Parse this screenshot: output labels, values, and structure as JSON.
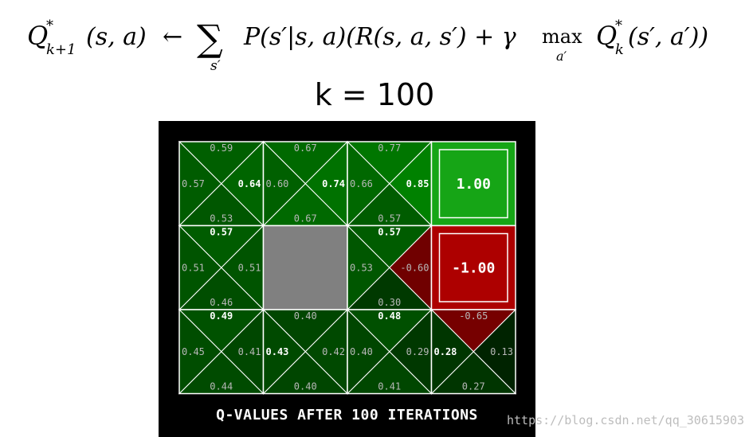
{
  "header": {
    "iteration_label": "k = 100"
  },
  "formula": {
    "lhs_q": "Q",
    "lhs_star": "*",
    "lhs_sub": "k+1",
    "lhs_args": "(s, a)",
    "arrow": "←",
    "sum": "∑",
    "sum_sub": "s′",
    "p_term": "P(s′|s, a)(R(s, a, s′) + γ",
    "max": "max",
    "max_sub": "a′",
    "rhs_q": "Q",
    "rhs_star": "*",
    "rhs_sub": "k",
    "rhs_args": "(s′, a′))"
  },
  "gridworld": {
    "rows": 3,
    "cols": 4,
    "cells": [
      {
        "row": 0,
        "col": 0,
        "type": "q",
        "north": "0.59",
        "west": "0.57",
        "east": "0.64",
        "south": "0.53",
        "best": "east"
      },
      {
        "row": 0,
        "col": 1,
        "type": "q",
        "north": "0.67",
        "west": "0.60",
        "east": "0.74",
        "south": "0.67",
        "best": "east"
      },
      {
        "row": 0,
        "col": 2,
        "type": "q",
        "north": "0.77",
        "west": "0.66",
        "east": "0.85",
        "south": "0.57",
        "best": "east"
      },
      {
        "row": 0,
        "col": 3,
        "type": "terminal",
        "value": "1.00",
        "color": "#16a516"
      },
      {
        "row": 1,
        "col": 0,
        "type": "q",
        "north": "0.57",
        "west": "0.51",
        "east": "0.51",
        "south": "0.46",
        "best": "north"
      },
      {
        "row": 1,
        "col": 1,
        "type": "wall",
        "color": "#808080"
      },
      {
        "row": 1,
        "col": 2,
        "type": "q",
        "north": "0.57",
        "west": "0.53",
        "east": "-0.60",
        "south": "0.30",
        "best": "north"
      },
      {
        "row": 1,
        "col": 3,
        "type": "terminal",
        "value": "-1.00",
        "color": "#ad0000"
      },
      {
        "row": 2,
        "col": 0,
        "type": "q",
        "north": "0.49",
        "west": "0.45",
        "east": "0.41",
        "south": "0.44",
        "best": "north"
      },
      {
        "row": 2,
        "col": 1,
        "type": "q",
        "north": "0.40",
        "west": "0.43",
        "east": "0.42",
        "south": "0.40",
        "best": "west"
      },
      {
        "row": 2,
        "col": 2,
        "type": "q",
        "north": "0.48",
        "west": "0.40",
        "east": "0.29",
        "south": "0.41",
        "best": "north"
      },
      {
        "row": 2,
        "col": 3,
        "type": "q",
        "north": "-0.65",
        "west": "0.28",
        "east": "0.13",
        "south": "0.27",
        "best": "west"
      }
    ]
  },
  "caption": "Q-VALUES AFTER 100 ITERATIONS",
  "watermark": "https://blog.csdn.net/qq_30615903"
}
